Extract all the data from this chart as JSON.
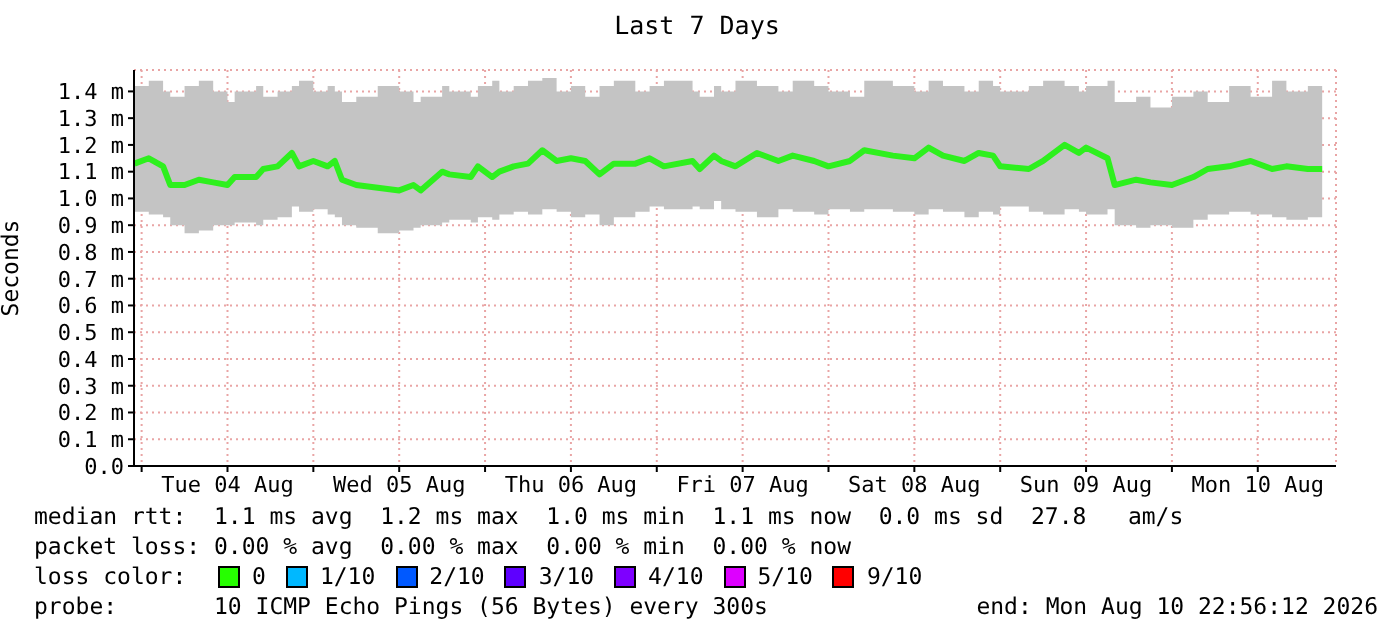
{
  "chart_data": {
    "type": "line",
    "title": "Last 7 Days",
    "ylabel": "Seconds",
    "x": [
      "2026-08-03T23:00",
      "2026-08-04T01:00",
      "2026-08-04T03:00",
      "2026-08-04T04:00",
      "2026-08-04T06:00",
      "2026-08-04T08:00",
      "2026-08-04T10:00",
      "2026-08-04T12:00",
      "2026-08-04T13:00",
      "2026-08-04T16:00",
      "2026-08-04T17:00",
      "2026-08-04T19:00",
      "2026-08-04T21:00",
      "2026-08-04T22:00",
      "2026-08-05T00:00",
      "2026-08-05T02:00",
      "2026-08-05T03:00",
      "2026-08-05T04:00",
      "2026-08-05T06:00",
      "2026-08-05T09:00",
      "2026-08-05T12:00",
      "2026-08-05T14:00",
      "2026-08-05T15:00",
      "2026-08-05T18:00",
      "2026-08-05T19:00",
      "2026-08-05T22:00",
      "2026-08-05T23:00",
      "2026-08-06T01:00",
      "2026-08-06T02:00",
      "2026-08-06T04:00",
      "2026-08-06T06:00",
      "2026-08-06T08:00",
      "2026-08-06T10:00",
      "2026-08-06T12:00",
      "2026-08-06T14:00",
      "2026-08-06T16:00",
      "2026-08-06T18:00",
      "2026-08-06T21:00",
      "2026-08-06T23:00",
      "2026-08-07T01:00",
      "2026-08-07T05:00",
      "2026-08-07T06:00",
      "2026-08-07T08:00",
      "2026-08-07T09:00",
      "2026-08-07T11:00",
      "2026-08-07T14:00",
      "2026-08-07T17:00",
      "2026-08-07T19:00",
      "2026-08-07T22:00",
      "2026-08-08T00:00",
      "2026-08-08T03:00",
      "2026-08-08T05:00",
      "2026-08-08T09:00",
      "2026-08-08T12:00",
      "2026-08-08T14:00",
      "2026-08-08T16:00",
      "2026-08-08T19:00",
      "2026-08-08T21:00",
      "2026-08-08T23:00",
      "2026-08-09T00:00",
      "2026-08-09T04:00",
      "2026-08-09T06:00",
      "2026-08-09T09:00",
      "2026-08-09T11:00",
      "2026-08-09T12:00",
      "2026-08-09T15:00",
      "2026-08-09T16:00",
      "2026-08-09T19:00",
      "2026-08-09T21:00",
      "2026-08-10T00:00",
      "2026-08-10T03:00",
      "2026-08-10T05:00",
      "2026-08-10T08:00",
      "2026-08-10T11:00",
      "2026-08-10T14:00",
      "2026-08-10T16:00",
      "2026-08-10T19:00",
      "2026-08-10T21:00"
    ],
    "series": [
      {
        "color": "#2ef01e",
        "values": [
          1.13,
          1.15,
          1.12,
          1.05,
          1.05,
          1.07,
          1.06,
          1.05,
          1.08,
          1.08,
          1.11,
          1.12,
          1.17,
          1.12,
          1.14,
          1.12,
          1.14,
          1.07,
          1.05,
          1.04,
          1.03,
          1.05,
          1.03,
          1.1,
          1.09,
          1.08,
          1.12,
          1.08,
          1.1,
          1.12,
          1.13,
          1.18,
          1.14,
          1.15,
          1.14,
          1.09,
          1.13,
          1.13,
          1.15,
          1.12,
          1.14,
          1.11,
          1.16,
          1.14,
          1.12,
          1.17,
          1.14,
          1.16,
          1.14,
          1.12,
          1.14,
          1.18,
          1.16,
          1.15,
          1.19,
          1.16,
          1.14,
          1.17,
          1.16,
          1.12,
          1.11,
          1.14,
          1.2,
          1.17,
          1.19,
          1.15,
          1.05,
          1.07,
          1.06,
          1.05,
          1.08,
          1.11,
          1.12,
          1.14,
          1.11,
          1.12,
          1.11,
          1.11
        ],
        "lower": [
          0.95,
          0.94,
          0.93,
          0.9,
          0.87,
          0.88,
          0.9,
          0.9,
          0.91,
          0.9,
          0.92,
          0.93,
          0.97,
          0.95,
          0.96,
          0.94,
          0.93,
          0.9,
          0.89,
          0.87,
          0.88,
          0.89,
          0.9,
          0.91,
          0.92,
          0.91,
          0.93,
          0.92,
          0.94,
          0.95,
          0.94,
          0.96,
          0.95,
          0.93,
          0.94,
          0.9,
          0.93,
          0.95,
          0.97,
          0.96,
          0.97,
          0.96,
          0.99,
          0.96,
          0.95,
          0.93,
          0.96,
          0.95,
          0.94,
          0.96,
          0.95,
          0.96,
          0.95,
          0.94,
          0.96,
          0.95,
          0.93,
          0.95,
          0.94,
          0.97,
          0.95,
          0.94,
          0.96,
          0.95,
          0.94,
          0.96,
          0.9,
          0.89,
          0.9,
          0.89,
          0.92,
          0.94,
          0.95,
          0.94,
          0.93,
          0.92,
          0.93,
          0.94
        ],
        "upper": [
          1.42,
          1.44,
          1.4,
          1.38,
          1.42,
          1.44,
          1.4,
          1.36,
          1.4,
          1.42,
          1.38,
          1.4,
          1.42,
          1.44,
          1.4,
          1.42,
          1.4,
          1.36,
          1.38,
          1.42,
          1.4,
          1.36,
          1.38,
          1.42,
          1.4,
          1.38,
          1.42,
          1.44,
          1.4,
          1.42,
          1.44,
          1.45,
          1.4,
          1.42,
          1.38,
          1.42,
          1.44,
          1.4,
          1.42,
          1.44,
          1.4,
          1.38,
          1.42,
          1.4,
          1.44,
          1.42,
          1.4,
          1.44,
          1.42,
          1.4,
          1.38,
          1.44,
          1.42,
          1.4,
          1.44,
          1.42,
          1.4,
          1.44,
          1.42,
          1.4,
          1.42,
          1.44,
          1.42,
          1.4,
          1.42,
          1.44,
          1.36,
          1.38,
          1.34,
          1.38,
          1.4,
          1.36,
          1.42,
          1.38,
          1.44,
          1.4,
          1.42,
          1.4
        ]
      }
    ],
    "xlim": [
      "2026-08-03T22:56",
      "2026-08-10T22:56"
    ],
    "xticks": [
      {
        "value": "2026-08-04T00:00",
        "label": null
      },
      {
        "value": "2026-08-04T12:00",
        "label": "Tue 04 Aug"
      },
      {
        "value": "2026-08-05T00:00",
        "label": null
      },
      {
        "value": "2026-08-05T12:00",
        "label": "Wed 05 Aug"
      },
      {
        "value": "2026-08-06T00:00",
        "label": null
      },
      {
        "value": "2026-08-06T12:00",
        "label": "Thu 06 Aug"
      },
      {
        "value": "2026-08-07T00:00",
        "label": null
      },
      {
        "value": "2026-08-07T12:00",
        "label": "Fri 07 Aug"
      },
      {
        "value": "2026-08-08T00:00",
        "label": null
      },
      {
        "value": "2026-08-08T12:00",
        "label": "Sat 08 Aug"
      },
      {
        "value": "2026-08-09T00:00",
        "label": null
      },
      {
        "value": "2026-08-09T12:00",
        "label": "Sun 09 Aug"
      },
      {
        "value": "2026-08-10T00:00",
        "label": null
      },
      {
        "value": "2026-08-10T12:00",
        "label": "Mon 10 Aug"
      }
    ],
    "ylim": [
      0,
      1.48
    ],
    "yticks": [
      {
        "value": 0,
        "label": "0.0"
      },
      {
        "value": 0.1,
        "label": "0.1 m"
      },
      {
        "value": 0.2,
        "label": "0.2 m"
      },
      {
        "value": 0.3,
        "label": "0.3 m"
      },
      {
        "value": 0.4,
        "label": "0.4 m"
      },
      {
        "value": 0.5,
        "label": "0.5 m"
      },
      {
        "value": 0.6,
        "label": "0.6 m"
      },
      {
        "value": 0.7,
        "label": "0.7 m"
      },
      {
        "value": 0.8,
        "label": "0.8 m"
      },
      {
        "value": 0.9,
        "label": "0.9 m"
      },
      {
        "value": 1.0,
        "label": "1.0 m"
      },
      {
        "value": 1.1,
        "label": "1.1 m"
      },
      {
        "value": 1.2,
        "label": "1.2 m"
      },
      {
        "value": 1.3,
        "label": "1.3 m"
      },
      {
        "value": 1.4,
        "label": "1.4 m"
      }
    ],
    "grid": true,
    "marker": "none",
    "line_style": "solid",
    "legend": false,
    "annotations": [
      "median rtt:  1.1 ms avg  1.2 ms max  1.0 ms min  1.1 ms now  0.0 ms sd  27.8   am/s",
      "packet loss: 0.00 % avg  0.00 % max  0.00 % min  0.00 % now",
      "loss color:",
      "0",
      "1/10",
      "2/10",
      "3/10",
      "4/10",
      "5/10",
      "9/10",
      "probe:       10 ICMP Echo Pings (56 Bytes) every 300s",
      "end: Mon Aug 10 22:56:12 2026"
    ]
  }
}
